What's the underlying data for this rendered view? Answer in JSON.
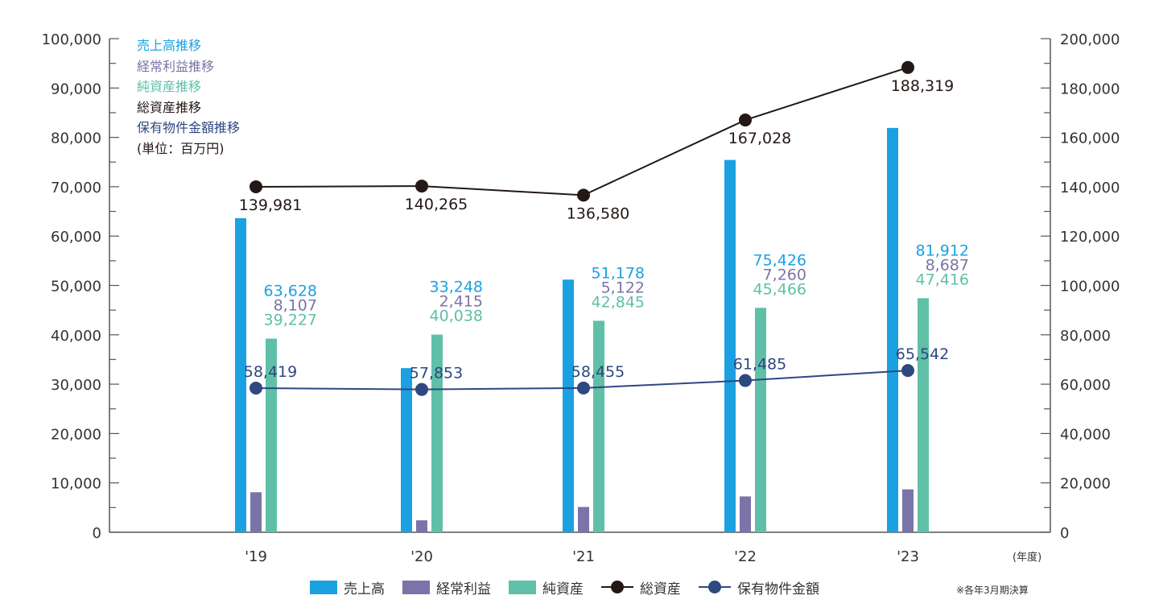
{
  "colors": {
    "sales": "#1ba1e2",
    "ordinary_profit": "#7b74a8",
    "net_assets": "#5fc0a7",
    "total_assets": "#231815",
    "property": "#2e4880",
    "axis": "#555555"
  },
  "legend_titles": [
    {
      "text": "売上高推移",
      "color": "#1ba1e2"
    },
    {
      "text": "経常利益推移",
      "color": "#7b74a8"
    },
    {
      "text": "純資産推移",
      "color": "#5fc0a7"
    },
    {
      "text": "総資産推移",
      "color": "#231815"
    },
    {
      "text": "保有物件金額推移",
      "color": "#2e4880"
    },
    {
      "text": "(単位：百万円)",
      "color": "#231815"
    }
  ],
  "bottom_legend": {
    "sales": "売上高",
    "ordinary_profit": "経常利益",
    "net_assets": "純資産",
    "total_assets": "総資産",
    "property": "保有物件金額"
  },
  "x_unit": "(年度)",
  "note": "※各年3月期決算",
  "chart_data": {
    "type": "bar",
    "categories": [
      "'19",
      "'20",
      "'21",
      "'22",
      "'23"
    ],
    "y_left": {
      "ylim": [
        0,
        100000
      ],
      "ticks": [
        "0",
        "10,000",
        "20,000",
        "30,000",
        "40,000",
        "50,000",
        "60,000",
        "70,000",
        "80,000",
        "90,000",
        "100,000"
      ]
    },
    "y_right": {
      "ylim": [
        0,
        200000
      ],
      "ticks": [
        "0",
        "20,000",
        "40,000",
        "60,000",
        "80,000",
        "100,000",
        "120,000",
        "140,000",
        "160,000",
        "180,000",
        "200,000"
      ]
    },
    "series": [
      {
        "name": "売上高",
        "kind": "bar",
        "axis": "left",
        "values": [
          63628,
          33248,
          51178,
          75426,
          81912
        ],
        "labels": [
          "63,628",
          "33,248",
          "51,178",
          "75,426",
          "81,912"
        ]
      },
      {
        "name": "経常利益",
        "kind": "bar",
        "axis": "left",
        "values": [
          8107,
          2415,
          5122,
          7260,
          8687
        ],
        "labels": [
          "8,107",
          "2,415",
          "5,122",
          "7,260",
          "8,687"
        ]
      },
      {
        "name": "純資産",
        "kind": "bar",
        "axis": "left",
        "values": [
          39227,
          40038,
          42845,
          45466,
          47416
        ],
        "labels": [
          "39,227",
          "40,038",
          "42,845",
          "45,466",
          "47,416"
        ]
      },
      {
        "name": "総資産",
        "kind": "line",
        "axis": "right",
        "values": [
          139981,
          140265,
          136580,
          167028,
          188319
        ],
        "labels": [
          "139,981",
          "140,265",
          "136,580",
          "167,028",
          "188,319"
        ]
      },
      {
        "name": "保有物件金額",
        "kind": "line",
        "axis": "right",
        "values": [
          58419,
          57853,
          58455,
          61485,
          65542
        ],
        "labels": [
          "58,419",
          "57,853",
          "58,455",
          "61,485",
          "65,542"
        ]
      }
    ]
  }
}
